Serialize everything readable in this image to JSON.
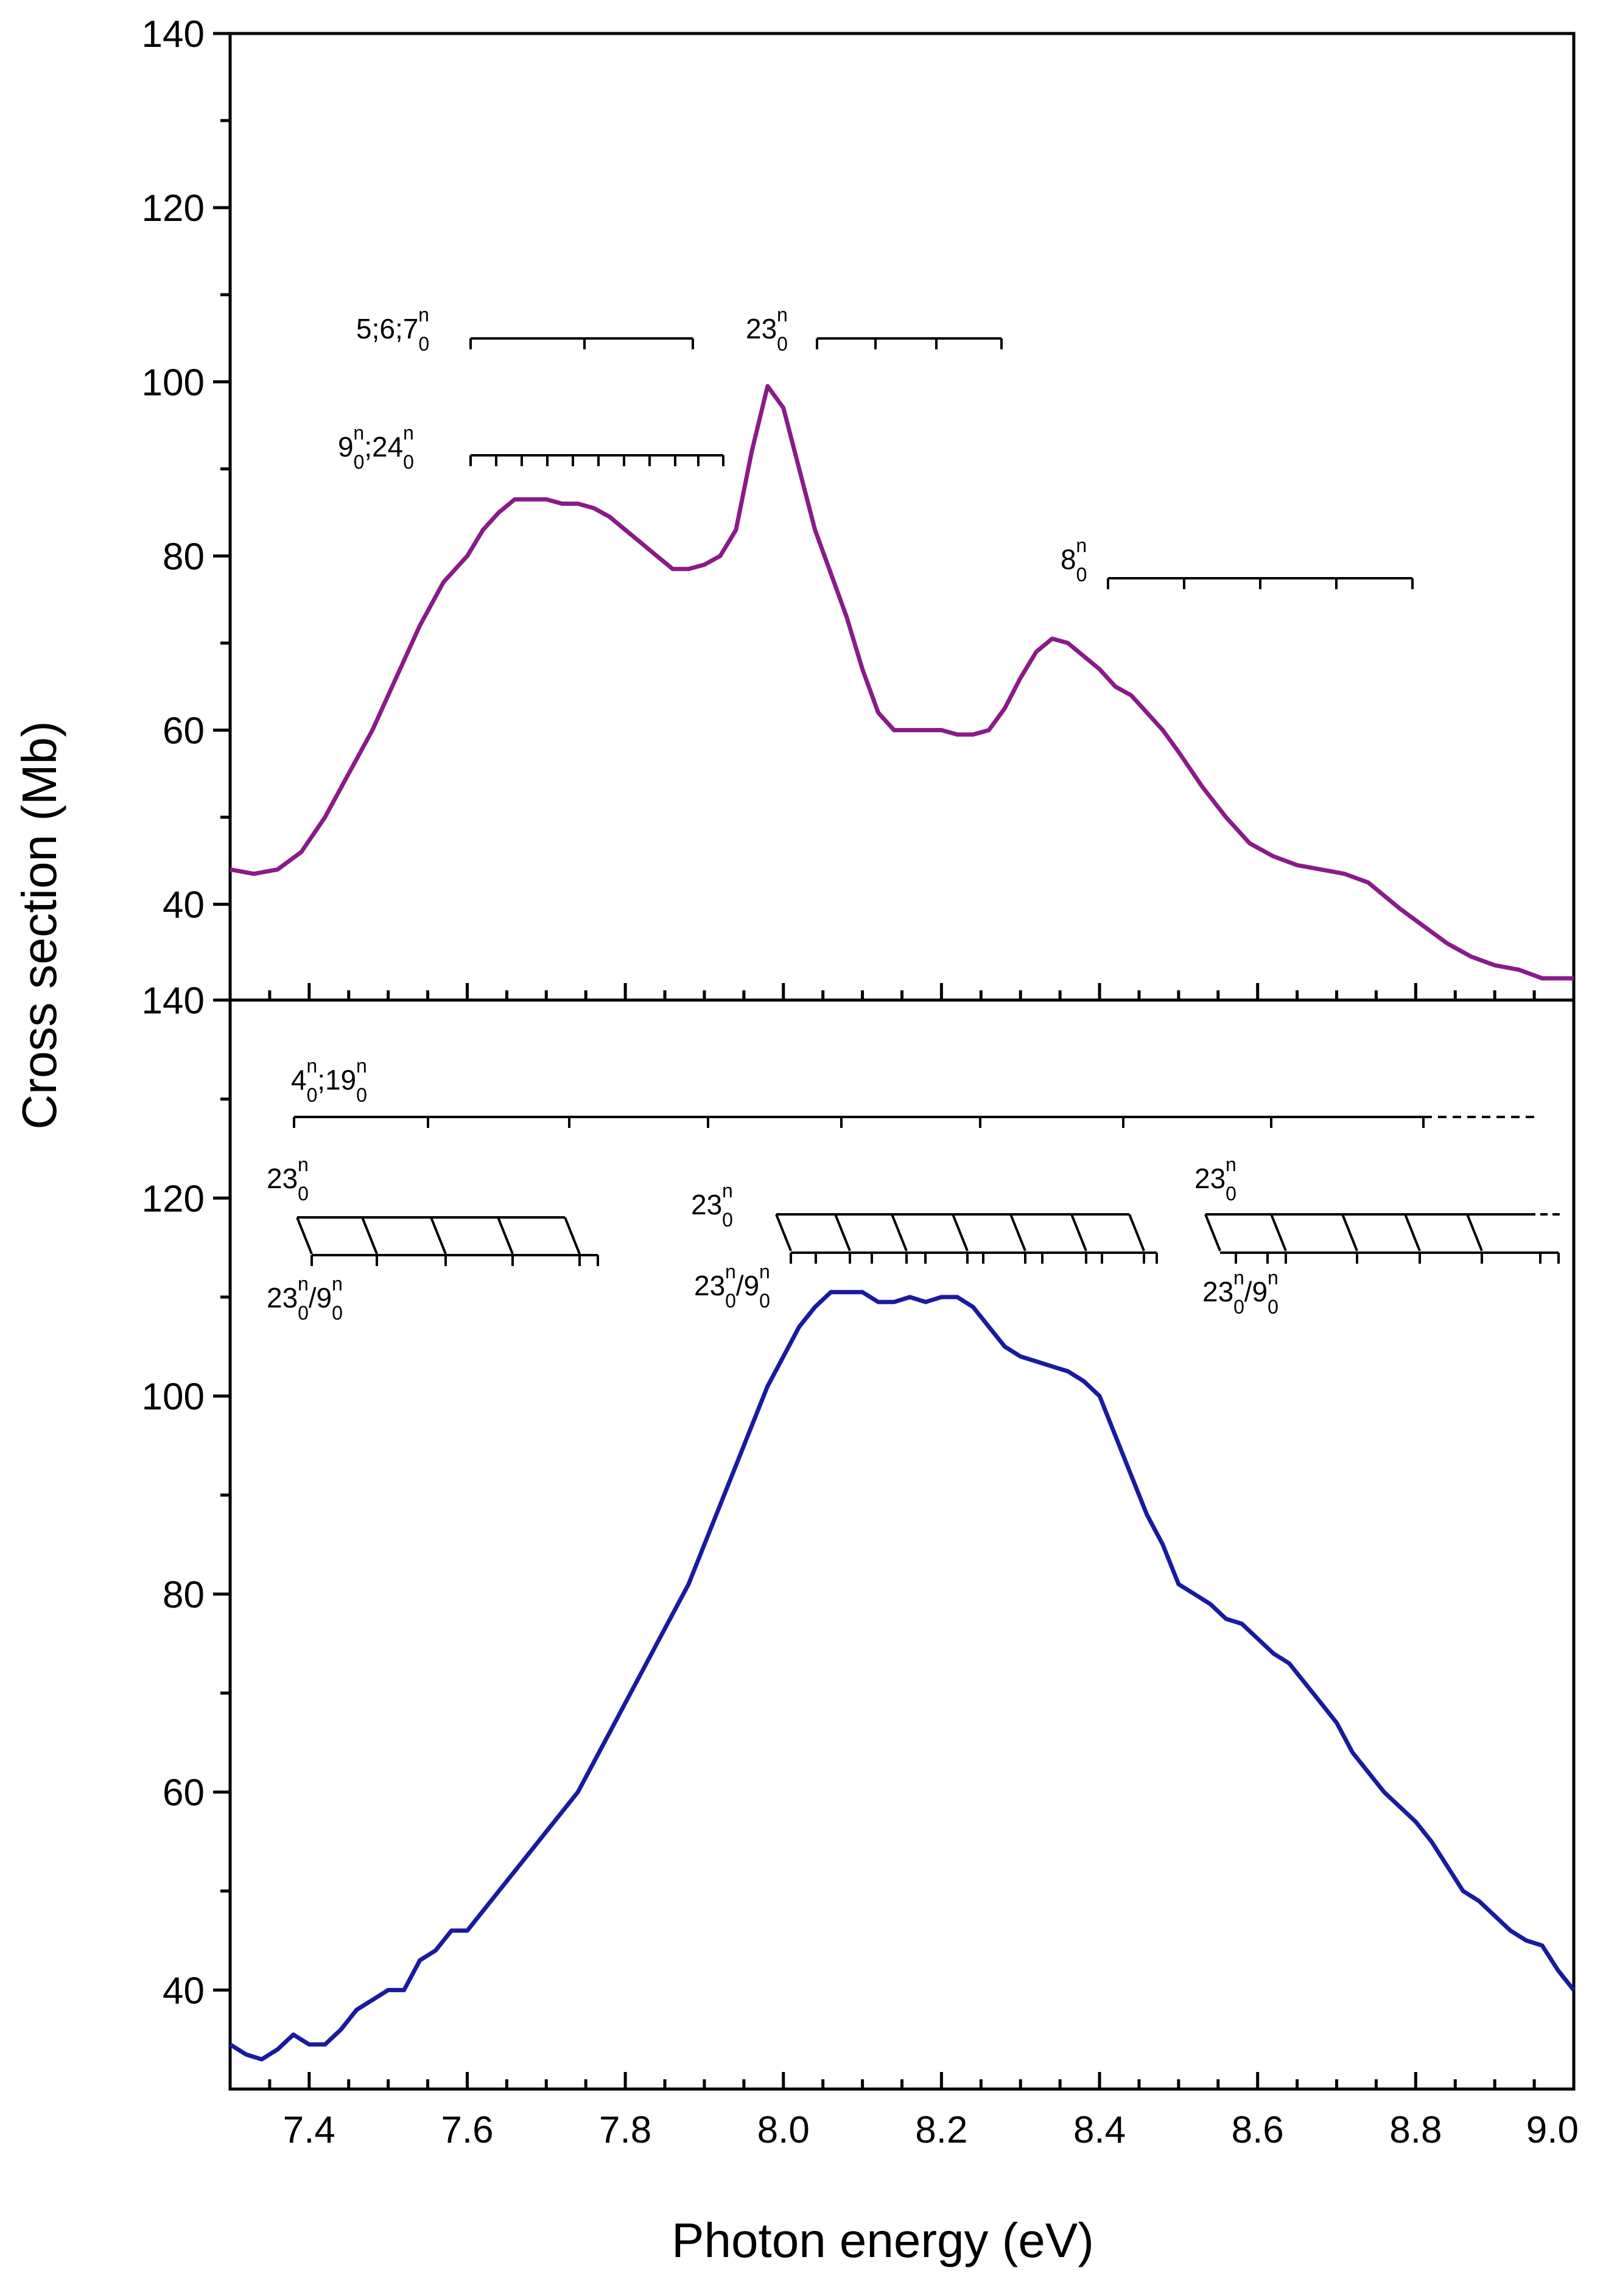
{
  "chart_data": {
    "type": "line",
    "xlabel": "Photon energy (eV)",
    "ylabel": "Cross section (Mb)",
    "xlim": [
      7.3,
      9.0
    ],
    "x_ticks": [
      "7.4",
      "7.6",
      "7.8",
      "8.0",
      "8.2",
      "8.4",
      "8.6",
      "8.8",
      "9.0"
    ],
    "panels": [
      {
        "name": "top",
        "ylim": [
          29,
          140
        ],
        "y_ticks": [
          "40",
          "60",
          "80",
          "100",
          "120",
          "140"
        ],
        "series": [
          {
            "name": "top spectrum",
            "color": "#8B1A89",
            "x": [
              7.3,
              7.33,
              7.36,
              7.39,
              7.42,
              7.45,
              7.48,
              7.51,
              7.54,
              7.57,
              7.6,
              7.62,
              7.64,
              7.66,
              7.68,
              7.7,
              7.72,
              7.74,
              7.76,
              7.78,
              7.8,
              7.82,
              7.84,
              7.86,
              7.88,
              7.9,
              7.92,
              7.94,
              7.96,
              7.98,
              8.0,
              8.02,
              8.04,
              8.06,
              8.08,
              8.1,
              8.12,
              8.14,
              8.16,
              8.18,
              8.2,
              8.22,
              8.24,
              8.26,
              8.28,
              8.3,
              8.32,
              8.34,
              8.36,
              8.38,
              8.4,
              8.42,
              8.44,
              8.46,
              8.48,
              8.5,
              8.53,
              8.56,
              8.59,
              8.62,
              8.65,
              8.68,
              8.71,
              8.74,
              8.76,
              8.78,
              8.81,
              8.84,
              8.87,
              8.9,
              8.93,
              8.96,
              9.0
            ],
            "y": [
              44,
              43.5,
              44,
              46,
              50,
              55,
              60,
              66,
              72,
              77,
              80,
              83,
              85,
              86.5,
              86.5,
              86.5,
              86,
              86,
              85.5,
              84.5,
              83,
              81.5,
              80,
              78.5,
              78.5,
              79,
              80,
              83,
              92,
              99.5,
              97,
              90,
              83,
              78,
              73,
              67,
              62,
              60,
              60,
              60,
              60,
              59.5,
              59.5,
              60,
              62.5,
              66,
              69,
              70.5,
              70,
              68.5,
              67,
              65,
              64,
              62,
              60,
              57.5,
              53.5,
              50,
              47,
              45.5,
              44.5,
              44,
              43.5,
              42.5,
              41,
              39.5,
              37.5,
              35.5,
              34,
              33,
              32.5,
              31.5,
              31.5
            ]
          }
        ]
      },
      {
        "name": "bottom",
        "ylim": [
          30,
          140
        ],
        "y_ticks": [
          "40",
          "60",
          "80",
          "100",
          "120",
          "140"
        ],
        "series": [
          {
            "name": "bottom spectrum",
            "color": "#1A1AA0",
            "x": [
              7.3,
              7.32,
              7.34,
              7.36,
              7.38,
              7.4,
              7.42,
              7.44,
              7.46,
              7.48,
              7.5,
              7.52,
              7.54,
              7.56,
              7.58,
              7.6,
              7.62,
              7.64,
              7.66,
              7.68,
              7.7,
              7.72,
              7.74,
              7.76,
              7.78,
              7.8,
              7.82,
              7.84,
              7.86,
              7.88,
              7.9,
              7.92,
              7.94,
              7.96,
              7.98,
              8.0,
              8.02,
              8.04,
              8.06,
              8.08,
              8.1,
              8.12,
              8.14,
              8.16,
              8.18,
              8.2,
              8.22,
              8.24,
              8.26,
              8.28,
              8.3,
              8.32,
              8.34,
              8.36,
              8.38,
              8.4,
              8.42,
              8.44,
              8.46,
              8.48,
              8.5,
              8.52,
              8.54,
              8.56,
              8.58,
              8.6,
              8.62,
              8.64,
              8.66,
              8.68,
              8.7,
              8.72,
              8.74,
              8.76,
              8.78,
              8.8,
              8.82,
              8.84,
              8.86,
              8.88,
              8.9,
              8.92,
              8.94,
              8.96,
              8.98,
              9.0
            ],
            "y": [
              34.5,
              33.5,
              33,
              34,
              35.5,
              34.5,
              34.5,
              36,
              38,
              39,
              40,
              40,
              43,
              44,
              46,
              46,
              48,
              50,
              52,
              54,
              56,
              58,
              60,
              63,
              66,
              69,
              72,
              75,
              78,
              81,
              85,
              89,
              93,
              97,
              101,
              104,
              107,
              109,
              110.5,
              110.5,
              110.5,
              109.5,
              109.5,
              110,
              109.5,
              110,
              110,
              109,
              107,
              105,
              104,
              103.5,
              103,
              102.5,
              101.5,
              100,
              96,
              92,
              88,
              85,
              81,
              80,
              79,
              77.5,
              77,
              75.5,
              74,
              73,
              71,
              69,
              67,
              64,
              62,
              60,
              58.5,
              57,
              55,
              52.5,
              50,
              49,
              47.5,
              46,
              45,
              44.5,
              42,
              40
            ]
          }
        ]
      }
    ]
  },
  "annotations": {
    "top": {
      "prog_5_6_7": {
        "base": "5;6;7",
        "sub": "0",
        "sup": "n"
      },
      "prog_9_24": {
        "b1": "9",
        "sub1": "0",
        "sup1": "n",
        "b2": ";24",
        "sub2": "0",
        "sup2": "n"
      },
      "prog_23": {
        "base": "23",
        "sub": "0",
        "sup": "n"
      },
      "prog_8": {
        "base": "8",
        "sub": "0",
        "sup": "n"
      }
    },
    "bottom": {
      "prog_4_19": {
        "b1": "4",
        "sub1": "0",
        "sup1": "n",
        "b2": ";19",
        "sub2": "0",
        "sup2": "n"
      },
      "prog_23_a": {
        "base": "23",
        "sub": "0",
        "sup": "n"
      },
      "prog_23_9_a": {
        "b1": "23",
        "sub1": "0",
        "sup1": "n",
        "b2": "/9",
        "sub2": "0",
        "sup2": "n"
      },
      "prog_23_b": {
        "base": "23",
        "sub": "0",
        "sup": "n"
      },
      "prog_23_9_b": {
        "b1": "23",
        "sub1": "0",
        "sup1": "n",
        "b2": "/9",
        "sub2": "0",
        "sup2": "n"
      },
      "prog_23_c": {
        "base": "23",
        "sub": "0",
        "sup": "n"
      },
      "prog_23_9_c": {
        "b1": "23",
        "sub1": "0",
        "sup1": "n",
        "b2": "/9",
        "sub2": "0",
        "sup2": "n"
      }
    }
  }
}
